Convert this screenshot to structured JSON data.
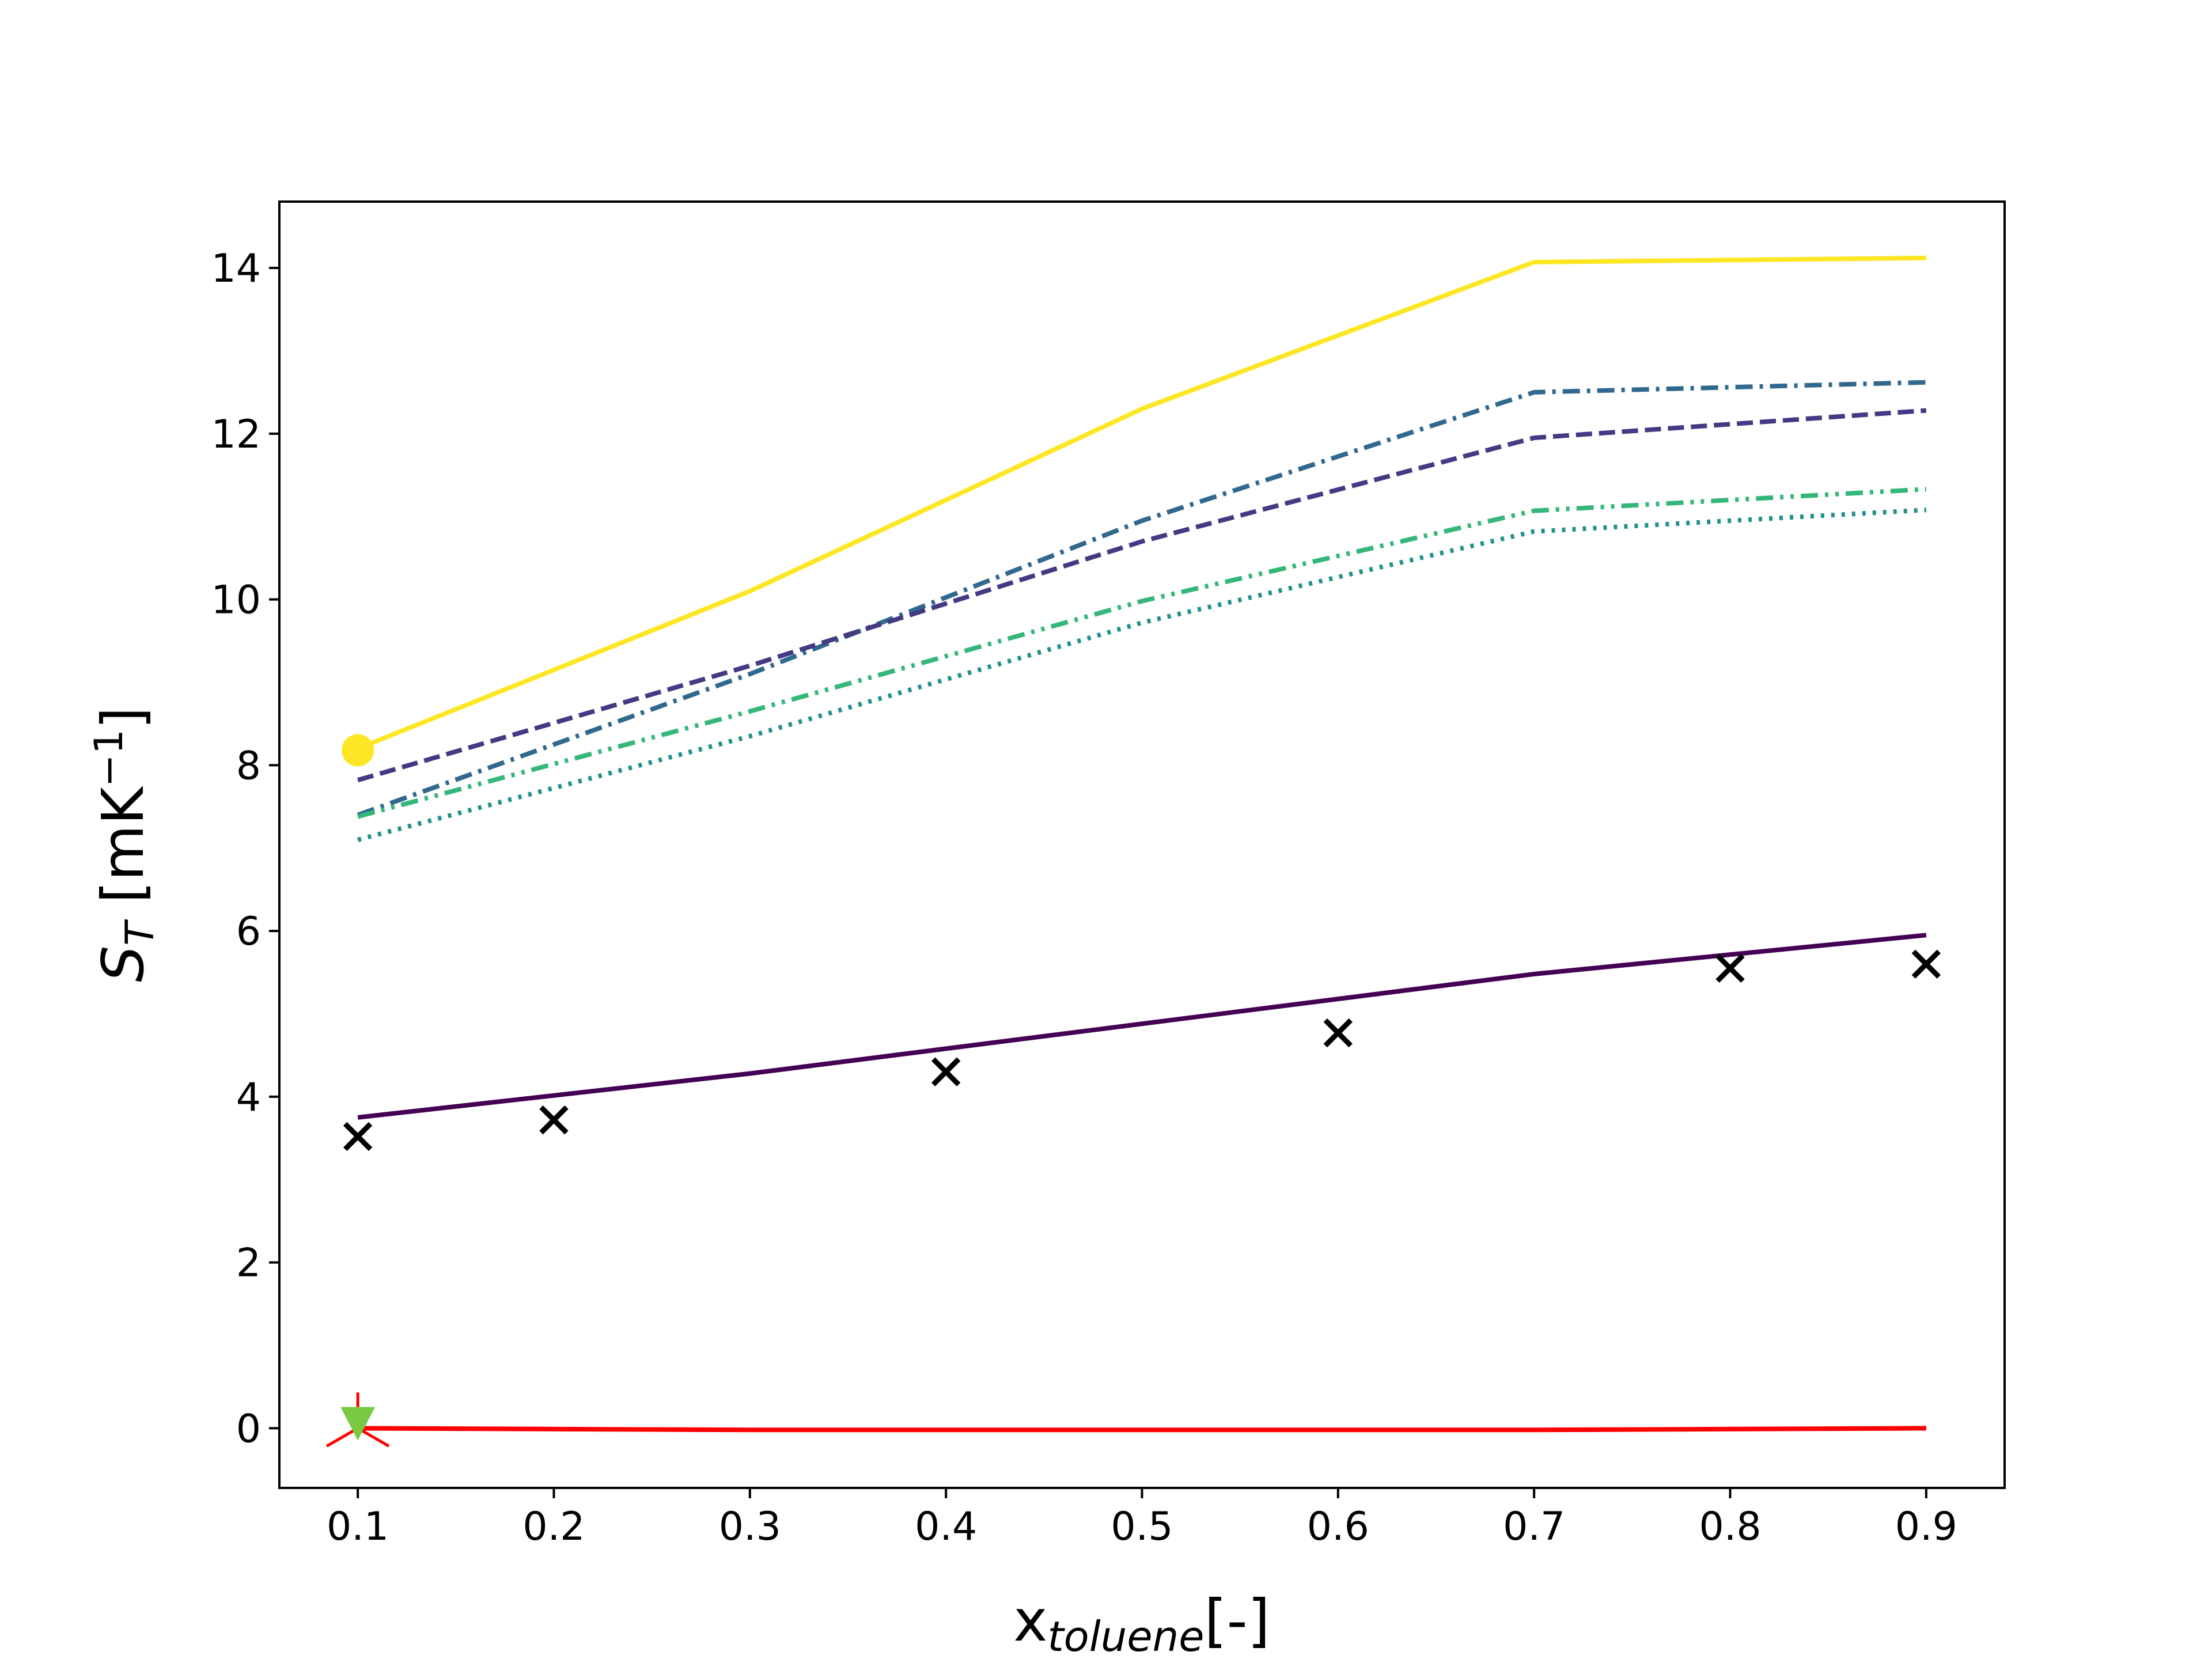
{
  "chart_data": {
    "type": "line",
    "title": "",
    "xlabel": {
      "main": "x",
      "sub": "toluene",
      "suffix": "[-]"
    },
    "ylabel": {
      "main": "S",
      "sub": "T",
      "suffix": " [mK",
      "sup": "−1",
      "close": "]"
    },
    "xlim": [
      0.06,
      0.94
    ],
    "ylim": [
      -0.72,
      14.8
    ],
    "xticks": [
      0.1,
      0.2,
      0.3,
      0.4,
      0.5,
      0.6,
      0.7,
      0.8,
      0.9
    ],
    "xtick_labels": [
      "0.1",
      "0.2",
      "0.3",
      "0.4",
      "0.5",
      "0.6",
      "0.7",
      "0.8",
      "0.9"
    ],
    "yticks": [
      0,
      2,
      4,
      6,
      8,
      10,
      12,
      14
    ],
    "ytick_labels": [
      "0",
      "2",
      "4",
      "6",
      "8",
      "10",
      "12",
      "14"
    ],
    "grid": false,
    "series": [
      {
        "color": "#fde725",
        "style": "solid",
        "x": [
          0.1,
          0.3,
          0.5,
          0.7,
          0.9
        ],
        "y": [
          8.2,
          10.1,
          12.3,
          14.07,
          14.12
        ],
        "marker": {
          "shape": "circle",
          "x": 0.1,
          "y": 8.18
        }
      },
      {
        "color": "#31688e",
        "style": "dashdot",
        "x": [
          0.1,
          0.3,
          0.5,
          0.7,
          0.9
        ],
        "y": [
          7.4,
          9.1,
          10.95,
          12.5,
          12.62
        ]
      },
      {
        "color": "#443983",
        "style": "dashed",
        "x": [
          0.1,
          0.3,
          0.5,
          0.7,
          0.9
        ],
        "y": [
          7.82,
          9.2,
          10.7,
          11.95,
          12.28
        ]
      },
      {
        "color": "#35b779",
        "style": "dashdotdot",
        "x": [
          0.1,
          0.3,
          0.5,
          0.7,
          0.9
        ],
        "y": [
          7.38,
          8.65,
          9.98,
          11.07,
          11.33
        ]
      },
      {
        "color": "#21918c",
        "style": "dotted",
        "x": [
          0.1,
          0.3,
          0.5,
          0.7,
          0.9
        ],
        "y": [
          7.1,
          8.35,
          9.72,
          10.82,
          11.08
        ]
      },
      {
        "color": "#440154",
        "style": "solid",
        "x": [
          0.1,
          0.3,
          0.5,
          0.7,
          0.9
        ],
        "y": [
          3.75,
          4.28,
          4.88,
          5.48,
          5.95
        ]
      },
      {
        "color": "#ff0000",
        "style": "solid",
        "x": [
          0.1,
          0.3,
          0.5,
          0.7,
          0.9
        ],
        "y": [
          0.0,
          -0.02,
          -0.02,
          -0.02,
          0.0
        ],
        "marker": {
          "shape": "tri_down",
          "x": 0.1,
          "y": 0.0
        }
      },
      {
        "color": "#7ac943",
        "style": "none",
        "x": [
          0.1
        ],
        "y": [
          0.0
        ],
        "marker": {
          "shape": "triangle_down",
          "x": 0.1,
          "y": 0.02
        }
      },
      {
        "color": "#000000",
        "style": "none",
        "marker_shape": "x",
        "x": [
          0.1,
          0.2,
          0.4,
          0.6,
          0.8,
          0.9
        ],
        "y": [
          3.52,
          3.72,
          4.3,
          4.77,
          5.55,
          5.6
        ]
      }
    ]
  }
}
